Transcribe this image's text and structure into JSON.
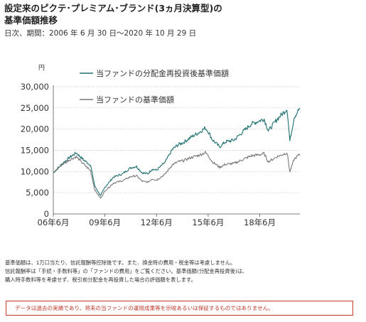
{
  "header": {
    "title_line1": "設定来のピクテ･プレミアム･ブランド(3ヵ月決算型)の",
    "title_line2": "基準価額推移",
    "period": "日次、期間：2006 年 6 月 30 日～2020 年 10 月 29 日"
  },
  "chart_data": {
    "type": "line",
    "y_unit_label": "円",
    "ylim": [
      0,
      30000
    ],
    "y_ticks": [
      "0",
      "5,000",
      "10,000",
      "15,000",
      "20,000",
      "25,000",
      "30,000"
    ],
    "y_tick_values": [
      0,
      5000,
      10000,
      15000,
      20000,
      25000,
      30000
    ],
    "xlim": [
      "2006-06",
      "2020-10"
    ],
    "x_ticks": [
      "06年6月",
      "09年6月",
      "12年6月",
      "15年6月",
      "18年6月"
    ],
    "x_tick_values": [
      "2006-06",
      "2009-06",
      "2012-06",
      "2015-06",
      "2018-06"
    ],
    "legend_position": "top-left",
    "grid": "horizontal dotted",
    "series": [
      {
        "name": "当ファンドの分配金再投資後基準価額",
        "color": "#1f6f6f",
        "x": [
          "2006-06",
          "2006-12",
          "2007-06",
          "2007-10",
          "2008-03",
          "2008-08",
          "2008-11",
          "2009-03",
          "2009-06",
          "2009-12",
          "2010-06",
          "2010-12",
          "2011-04",
          "2011-08",
          "2011-12",
          "2012-03",
          "2012-06",
          "2012-12",
          "2013-05",
          "2013-09",
          "2014-01",
          "2014-06",
          "2014-12",
          "2015-04",
          "2015-06",
          "2015-09",
          "2016-02",
          "2016-06",
          "2016-12",
          "2017-06",
          "2017-12",
          "2018-06",
          "2018-09",
          "2018-12",
          "2019-06",
          "2019-12",
          "2020-01",
          "2020-03",
          "2020-06",
          "2020-10"
        ],
        "y": [
          9700,
          11800,
          13500,
          14400,
          12800,
          11500,
          6500,
          4300,
          6300,
          8700,
          9400,
          10900,
          11200,
          9700,
          9500,
          10600,
          10300,
          12200,
          15200,
          16300,
          16900,
          18100,
          19300,
          20300,
          19500,
          17500,
          15800,
          17000,
          17400,
          19300,
          21200,
          22000,
          22400,
          19600,
          22300,
          24400,
          24900,
          17200,
          22800,
          25000
        ]
      },
      {
        "name": "当ファンドの基準価額",
        "color": "#7a7a7a",
        "x": [
          "2006-06",
          "2006-12",
          "2007-06",
          "2007-10",
          "2008-03",
          "2008-08",
          "2008-11",
          "2009-03",
          "2009-06",
          "2009-12",
          "2010-06",
          "2010-12",
          "2011-04",
          "2011-08",
          "2011-12",
          "2012-03",
          "2012-06",
          "2012-12",
          "2013-05",
          "2013-09",
          "2014-01",
          "2014-06",
          "2014-12",
          "2015-04",
          "2015-06",
          "2015-09",
          "2016-02",
          "2016-06",
          "2016-12",
          "2017-06",
          "2017-12",
          "2018-06",
          "2018-09",
          "2018-12",
          "2019-06",
          "2019-12",
          "2020-01",
          "2020-03",
          "2020-06",
          "2020-10"
        ],
        "y": [
          9700,
          11600,
          12900,
          13500,
          11800,
          10200,
          5600,
          3700,
          5400,
          7300,
          7800,
          8800,
          9000,
          7700,
          7500,
          8300,
          8000,
          9400,
          11600,
          12300,
          12600,
          13300,
          13900,
          14500,
          13800,
          12300,
          11000,
          11700,
          11900,
          12800,
          13700,
          14000,
          14200,
          12300,
          13500,
          14300,
          14500,
          9900,
          12900,
          14100
        ]
      }
    ]
  },
  "notes": {
    "line1": "基準価額は、1万口当たり、信託報酬等控除後です。また、換金時の費用・税金等は考慮しません。",
    "line2": "信託報酬率は「手続・手数料等」の「ファンドの費用」をご覧ください。基準価額(分配金再投資後)は、",
    "line3": "購入時手数料等を考慮せず、税引前分配金を再投資した場合の評価額を表します。"
  },
  "disclaimer": "データは過去の実績であり、将来の当ファンドの運用成果等を示唆あるいは保証するものではありません。"
}
